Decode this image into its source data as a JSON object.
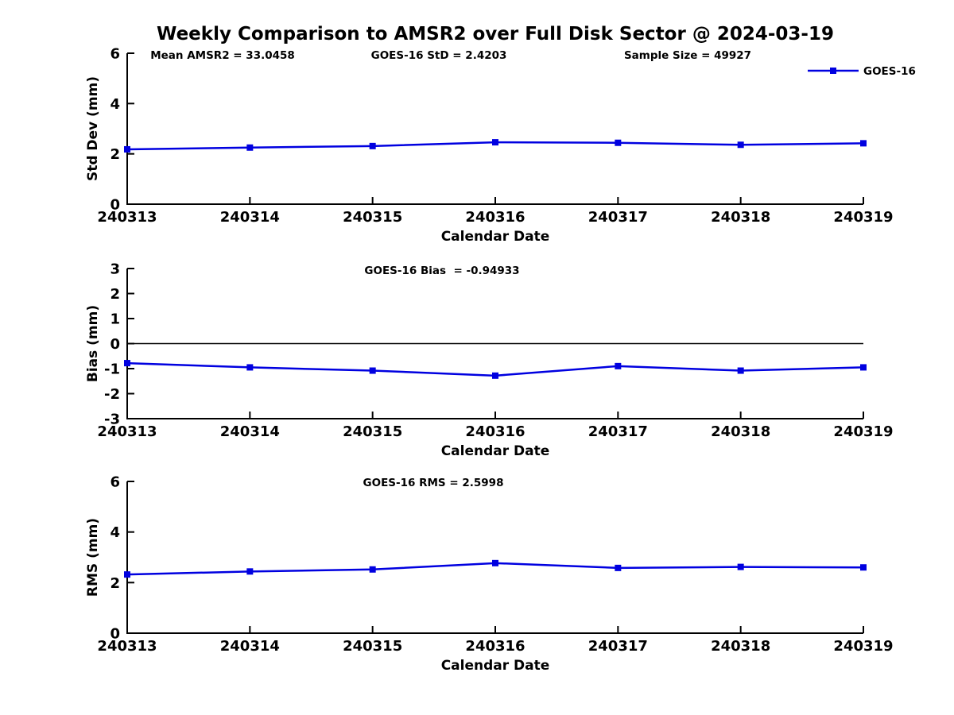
{
  "figure": {
    "title": "Weekly Comparison to AMSR2 over Full Disk Sector @ 2024-03-19"
  },
  "legend": {
    "label": "GOES-16",
    "position": "top-right-outside"
  },
  "colors": {
    "series": "#0000e0",
    "axis": "#000000",
    "text": "#000000",
    "background": "#ffffff"
  },
  "chart_data": [
    {
      "type": "line",
      "name": "std-dev",
      "ylabel": "Std Dev (mm)",
      "xlabel": "Calendar Date",
      "categories": [
        "240313",
        "240314",
        "240315",
        "240316",
        "240317",
        "240318",
        "240319"
      ],
      "series": [
        {
          "name": "GOES-16",
          "values": [
            2.18,
            2.25,
            2.31,
            2.46,
            2.44,
            2.36,
            2.42
          ]
        }
      ],
      "ylim": [
        0,
        6
      ],
      "yticks": [
        0,
        2,
        4,
        6
      ],
      "grid": false,
      "zero_line": false,
      "annotations": [
        "Mean AMSR2 = 33.0458",
        "GOES-16 StD = 2.4203",
        "Sample Size = 49927"
      ],
      "legend_entries": [
        "GOES-16"
      ]
    },
    {
      "type": "line",
      "name": "bias",
      "ylabel": "Bias (mm)",
      "xlabel": "Calendar Date",
      "categories": [
        "240313",
        "240314",
        "240315",
        "240316",
        "240317",
        "240318",
        "240319"
      ],
      "series": [
        {
          "name": "GOES-16",
          "values": [
            -0.78,
            -0.95,
            -1.08,
            -1.28,
            -0.9,
            -1.08,
            -0.95
          ]
        }
      ],
      "ylim": [
        -3,
        3
      ],
      "yticks": [
        3,
        2,
        1,
        0,
        -1,
        -2,
        -3
      ],
      "grid": false,
      "zero_line": true,
      "annotations": [
        "GOES-16 Bias  = -0.94933"
      ],
      "legend_entries": []
    },
    {
      "type": "line",
      "name": "rms",
      "ylabel": "RMS (mm)",
      "xlabel": "Calendar Date",
      "categories": [
        "240313",
        "240314",
        "240315",
        "240316",
        "240317",
        "240318",
        "240319"
      ],
      "series": [
        {
          "name": "GOES-16",
          "values": [
            2.32,
            2.44,
            2.52,
            2.77,
            2.58,
            2.62,
            2.6
          ]
        }
      ],
      "ylim": [
        0,
        6
      ],
      "yticks": [
        0,
        2,
        4,
        6
      ],
      "grid": false,
      "zero_line": false,
      "annotations": [
        "GOES-16 RMS = 2.5998"
      ],
      "legend_entries": []
    }
  ]
}
